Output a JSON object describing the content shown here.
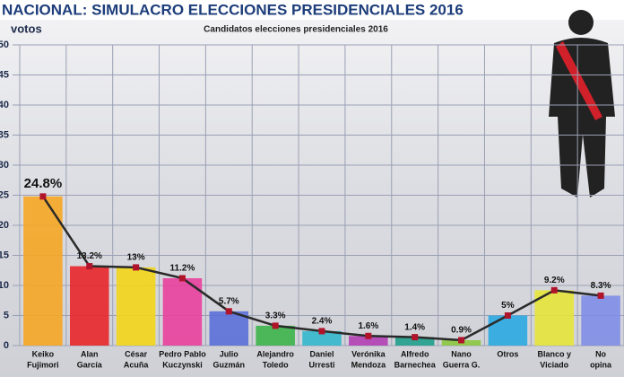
{
  "chart_data": {
    "type": "bar-line",
    "title": "NACIONAL: SIMULACRO ELECCIONES PRESIDENCIALES 2016",
    "y_label": "votos",
    "subtitle": "Candidatos elecciones presidenciales 2016",
    "categories": [
      [
        "Keiko",
        "Fujimori"
      ],
      [
        "Alan",
        "García"
      ],
      [
        "César",
        "Acuña"
      ],
      [
        "Pedro Pablo",
        "Kuczynski"
      ],
      [
        "Julio",
        "Guzmán"
      ],
      [
        "Alejandro",
        "Toledo"
      ],
      [
        "Daniel",
        "Urresti"
      ],
      [
        "Verónika",
        "Mendoza"
      ],
      [
        "Alfredo",
        "Barnechea"
      ],
      [
        "Nano",
        "Guerra G."
      ],
      [
        "Otros"
      ],
      [
        "Blanco y",
        "Viciado"
      ],
      [
        "No",
        "opina"
      ]
    ],
    "values": [
      24.8,
      13.2,
      13,
      11.2,
      5.7,
      3.3,
      2.4,
      1.6,
      1.4,
      0.9,
      5,
      9.2,
      8.3
    ],
    "value_labels": [
      "24.8%",
      "13.2%",
      "13%",
      "11.2%",
      "5.7%",
      "3.3%",
      "2.4%",
      "1.6%",
      "1.4%",
      "0.9%",
      "5%",
      "9.2%",
      "8.3%"
    ],
    "colors": [
      "#f5a623",
      "#e8262a",
      "#f3d51a",
      "#e8409c",
      "#5b6fd8",
      "#3cb44a",
      "#33b7cc",
      "#b23fb4",
      "#1f9e8c",
      "#8cc63f",
      "#2aa8e0",
      "#e6e43a",
      "#7f8de6"
    ],
    "line_color": "#2a2a2a",
    "marker_color": "#b0142a",
    "ylim": [
      0,
      50
    ],
    "yticks": [
      0,
      5,
      10,
      15,
      20,
      25,
      30,
      35,
      40,
      45,
      50
    ],
    "grid": true
  }
}
